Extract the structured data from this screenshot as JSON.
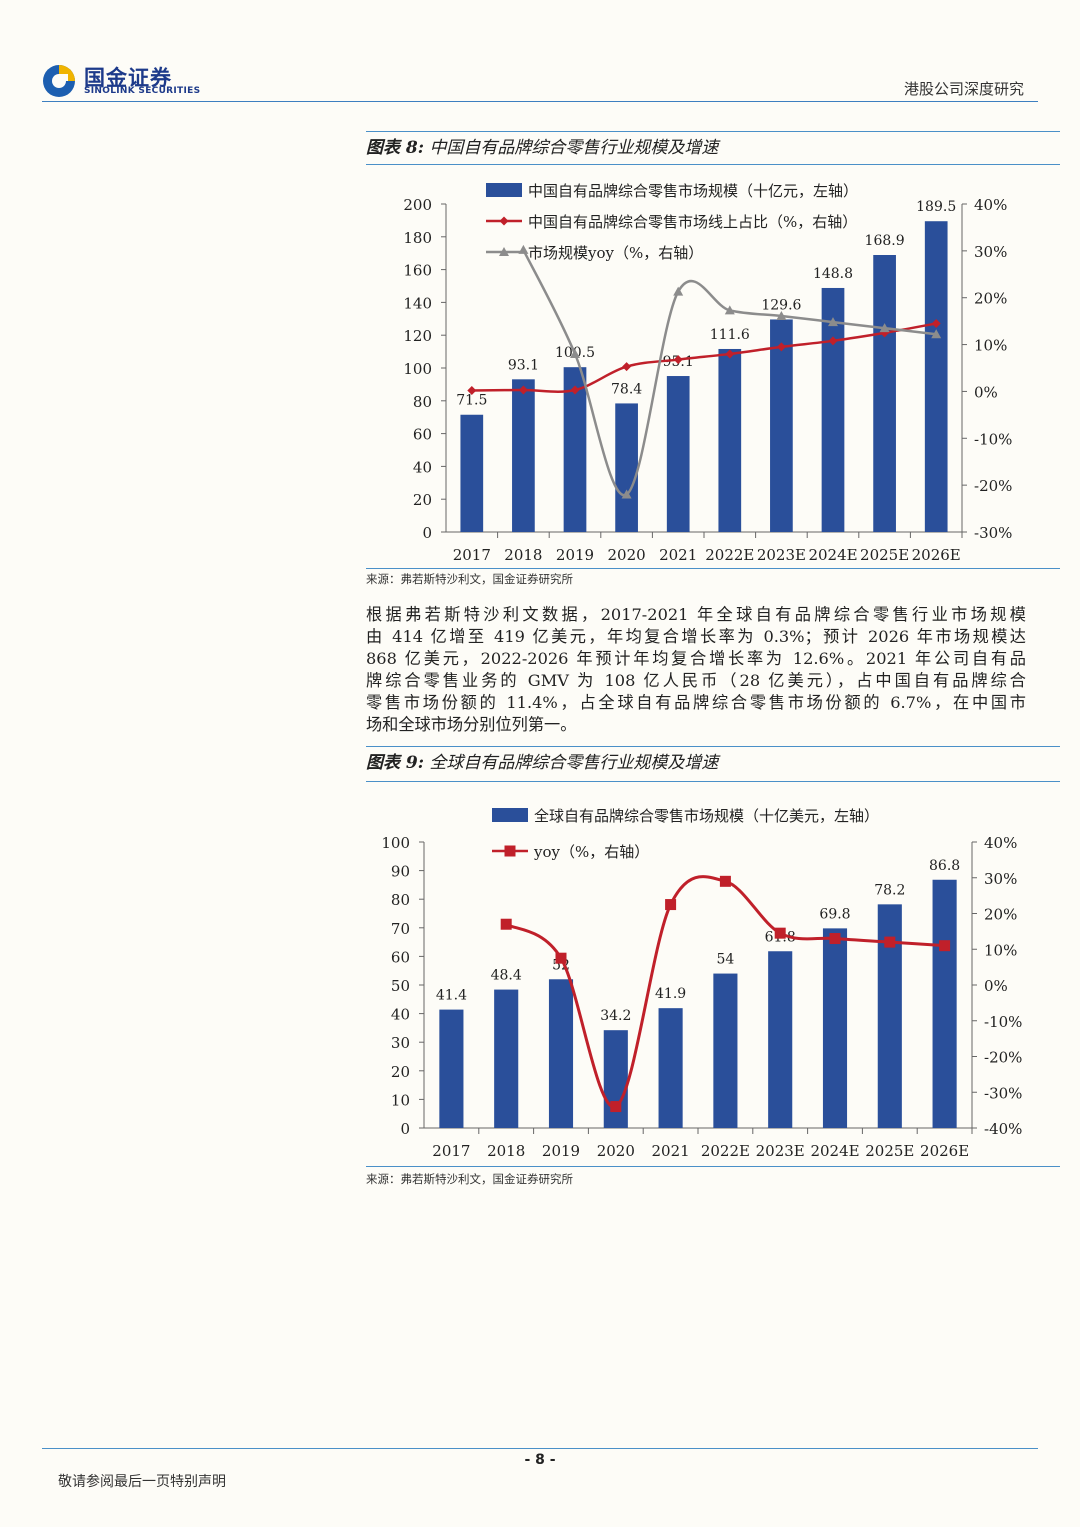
{
  "header": {
    "logo_cn": "国金证券",
    "logo_en": "SINOLINK SECURITIES",
    "right_text": "港股公司深度研究"
  },
  "figure8": {
    "title_prefix": "图表 8:",
    "title": "中国自有品牌综合零售行业规模及增速",
    "source": "来源：弗若斯特沙利文，国金证券研究所"
  },
  "figure9": {
    "title_prefix": "图表 9:",
    "title": "全球自有品牌综合零售行业规模及增速",
    "source": "来源：弗若斯特沙利文，国金证券研究所"
  },
  "paragraph": {
    "lines": [
      "根据弗若斯特沙利文数据，2017-2021 年全球自有品牌综合零售行业市场规模",
      "由 414 亿增至 419 亿美元，年均复合增长率为 0.3%；预计 2026 年市场规模达",
      "868 亿美元，2022-2026 年预计年均复合增长率为 12.6%。2021 年公司自有品",
      "牌综合零售业务的 GMV 为 108 亿人民币（28 亿美元），占中国自有品牌综合",
      "零售市场份额的 11.4%，占全球自有品牌综合零售市场份额的 6.7%，在中国市",
      "场和全球市场分别位列第一。"
    ]
  },
  "footer": {
    "page_number": "- 8 -",
    "disclaimer": "敬请参阅最后一页特别声明"
  },
  "chart_data": [
    {
      "type": "bar",
      "categories": [
        "2017",
        "2018",
        "2019",
        "2020",
        "2021",
        "2022E",
        "2023E",
        "2024E",
        "2025E",
        "2026E"
      ],
      "series": [
        {
          "name": "中国自有品牌综合零售市场规模（十亿元，左轴）",
          "type": "bar",
          "axis": "left",
          "color": "#2a4f9a",
          "values": [
            71.5,
            93.1,
            100.5,
            78.4,
            95.1,
            111.6,
            129.6,
            148.8,
            168.9,
            189.5
          ],
          "labels": [
            "71.5",
            "93.1",
            "100.5",
            "78.4",
            "95.1",
            "111.6",
            "129.6",
            "148.8",
            "168.9",
            "189.5"
          ]
        },
        {
          "name": "中国自有品牌综合零售市场线上占比（%，右轴）",
          "type": "line",
          "axis": "right",
          "color": "#c0202a",
          "marker": "diamond",
          "values": [
            0.2,
            0.3,
            0.3,
            5.3,
            6.8,
            8.0,
            9.5,
            10.8,
            12.5,
            14.5
          ]
        },
        {
          "name": "市场规模yoy（%，右轴）",
          "type": "line",
          "axis": "right",
          "color": "#8c8c8c",
          "marker": "triangle",
          "values": [
            null,
            30.2,
            8.0,
            -22.0,
            21.3,
            17.3,
            16.1,
            14.8,
            13.5,
            12.2
          ]
        }
      ],
      "ylim_left": [
        0,
        200
      ],
      "yticks_left": [
        "0",
        "20",
        "40",
        "60",
        "80",
        "100",
        "120",
        "140",
        "160",
        "180",
        "200"
      ],
      "ylim_right": [
        -30,
        40
      ],
      "yticks_right": [
        "-30%",
        "-20%",
        "-10%",
        "0%",
        "10%",
        "20%",
        "30%",
        "40%"
      ],
      "grid": false,
      "legend": "top-left"
    },
    {
      "type": "bar",
      "categories": [
        "2017",
        "2018",
        "2019",
        "2020",
        "2021",
        "2022E",
        "2023E",
        "2024E",
        "2025E",
        "2026E"
      ],
      "series": [
        {
          "name": "全球自有品牌综合零售市场规模（十亿美元，左轴）",
          "type": "bar",
          "axis": "left",
          "color": "#2a4f9a",
          "values": [
            41.4,
            48.4,
            52,
            34.2,
            41.9,
            54,
            61.8,
            69.8,
            78.2,
            86.8
          ],
          "labels": [
            "41.4",
            "48.4",
            "52",
            "34.2",
            "41.9",
            "54",
            "61.8",
            "69.8",
            "78.2",
            "86.8"
          ]
        },
        {
          "name": "yoy（%，右轴）",
          "type": "line",
          "axis": "right",
          "color": "#c0202a",
          "marker": "square",
          "values": [
            null,
            17.0,
            7.5,
            -34.0,
            22.5,
            29.0,
            14.5,
            13.0,
            12.0,
            11.0
          ]
        }
      ],
      "ylim_left": [
        0,
        100
      ],
      "yticks_left": [
        "0",
        "10",
        "20",
        "30",
        "40",
        "50",
        "60",
        "70",
        "80",
        "90",
        "100"
      ],
      "ylim_right": [
        -40,
        40
      ],
      "yticks_right": [
        "-40%",
        "-30%",
        "-20%",
        "-10%",
        "0%",
        "10%",
        "20%",
        "30%",
        "40%"
      ],
      "grid": false,
      "legend": "top-left"
    }
  ]
}
